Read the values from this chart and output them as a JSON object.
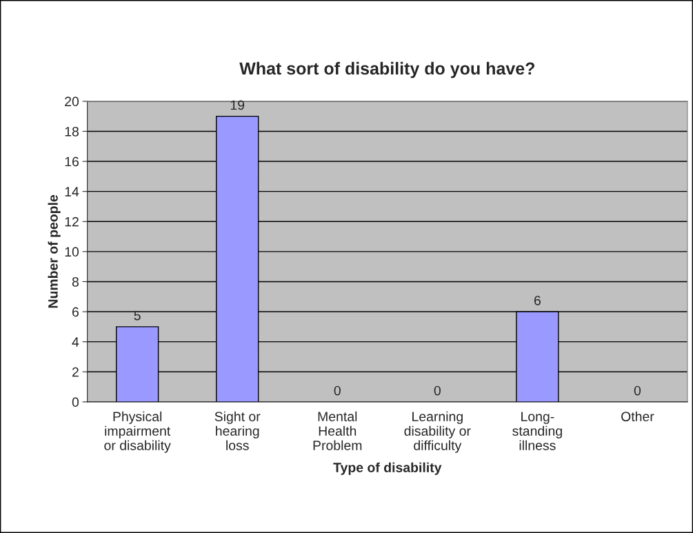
{
  "chart_data": {
    "type": "bar",
    "title": "What sort of disability do you have?",
    "xlabel": "Type of disability",
    "ylabel": "Number of people",
    "categories": [
      "Physical\nimpairment\nor disability",
      "Sight or\nhearing\nloss",
      "Mental\nHealth\nProblem",
      "Learning\ndisability or\ndifficulty",
      "Long-\nstanding\nillness",
      "Other"
    ],
    "values": [
      5,
      19,
      0,
      0,
      6,
      0
    ],
    "color": "#9999ff",
    "ylim": [
      0,
      20
    ],
    "yticks": [
      0,
      2,
      4,
      6,
      8,
      10,
      12,
      14,
      16,
      18,
      20
    ],
    "grid": "y",
    "data_labels": true
  }
}
